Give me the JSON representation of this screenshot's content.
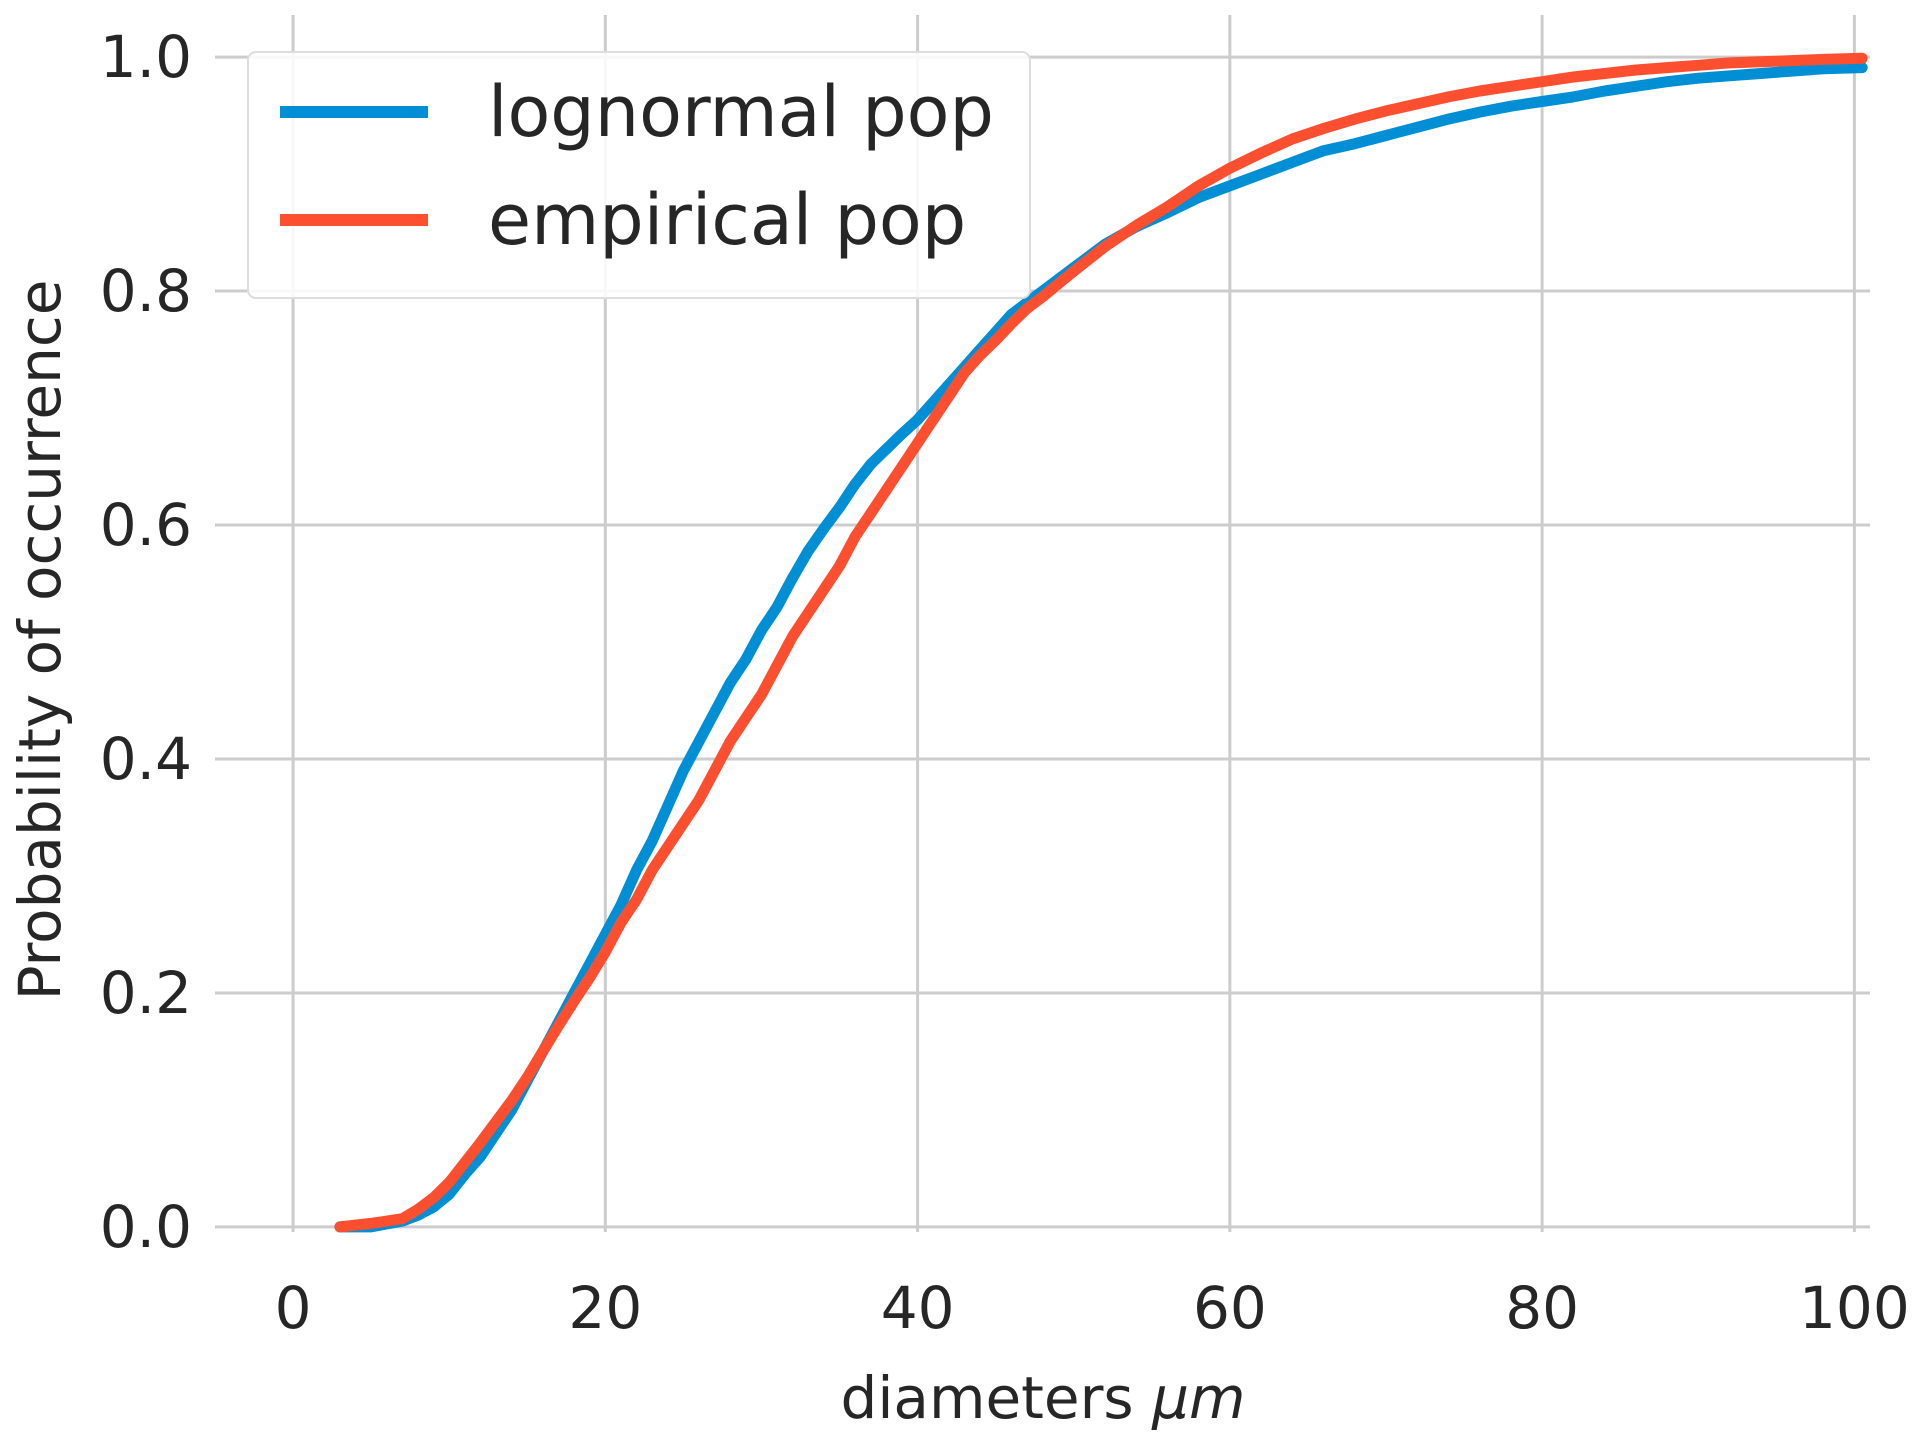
{
  "chart_data": {
    "type": "line",
    "xlabel": "diameters μm",
    "xlabel_parts": {
      "text": "diameters ",
      "unit": "μm"
    },
    "ylabel": "Probability of occurrence",
    "xlim": [
      -5,
      101
    ],
    "ylim": [
      -0.03,
      1.03
    ],
    "x_ticks": [
      0,
      20,
      40,
      60,
      80,
      100
    ],
    "x_tick_labels": [
      "0",
      "20",
      "40",
      "60",
      "80",
      "100"
    ],
    "y_ticks": [
      0.0,
      0.2,
      0.4,
      0.6,
      0.8,
      1.0
    ],
    "y_tick_labels": [
      "0.0",
      "0.2",
      "0.4",
      "0.6",
      "0.8",
      "1.0"
    ],
    "grid": true,
    "legend_position": "top-left",
    "series": [
      {
        "name": "lognormal pop",
        "color": "#008fd5",
        "x": [
          3,
          5,
          7,
          8,
          9,
          10,
          11,
          12,
          13,
          14,
          15,
          16,
          17,
          18,
          19,
          20,
          21,
          22,
          23,
          24,
          25,
          26,
          27,
          28,
          29,
          30,
          31,
          32,
          33,
          34,
          35,
          36,
          37,
          38,
          39,
          40,
          41,
          42,
          43,
          44,
          45,
          46,
          47,
          48,
          49,
          50,
          52,
          54,
          56,
          58,
          60,
          62,
          64,
          66,
          68,
          70,
          72,
          74,
          76,
          78,
          80,
          82,
          84,
          86,
          88,
          90,
          92,
          94,
          96,
          98,
          100.5
        ],
        "y": [
          0.0,
          0.0,
          0.005,
          0.01,
          0.017,
          0.028,
          0.045,
          0.06,
          0.08,
          0.1,
          0.125,
          0.15,
          0.175,
          0.2,
          0.225,
          0.25,
          0.275,
          0.305,
          0.33,
          0.36,
          0.39,
          0.415,
          0.44,
          0.465,
          0.485,
          0.51,
          0.53,
          0.555,
          0.578,
          0.597,
          0.615,
          0.635,
          0.652,
          0.665,
          0.678,
          0.69,
          0.705,
          0.72,
          0.735,
          0.75,
          0.765,
          0.78,
          0.79,
          0.8,
          0.81,
          0.82,
          0.84,
          0.855,
          0.867,
          0.88,
          0.89,
          0.9,
          0.91,
          0.92,
          0.926,
          0.933,
          0.94,
          0.947,
          0.953,
          0.958,
          0.962,
          0.966,
          0.971,
          0.975,
          0.979,
          0.982,
          0.984,
          0.986,
          0.988,
          0.99,
          0.991
        ]
      },
      {
        "name": "empirical pop",
        "color": "#fc4f30",
        "x": [
          3,
          5,
          7,
          8,
          9,
          10,
          11,
          12,
          13,
          14,
          15,
          16,
          17,
          18,
          19,
          20,
          21,
          22,
          23,
          24,
          25,
          26,
          27,
          28,
          29,
          30,
          31,
          32,
          33,
          34,
          35,
          36,
          37,
          38,
          39,
          40,
          41,
          42,
          43,
          44,
          45,
          46,
          47,
          48,
          49,
          50,
          52,
          54,
          56,
          58,
          60,
          62,
          64,
          66,
          68,
          70,
          72,
          74,
          76,
          78,
          80,
          82,
          84,
          86,
          88,
          90,
          92,
          94,
          96,
          98,
          100.5
        ],
        "y": [
          0.0,
          0.003,
          0.007,
          0.015,
          0.025,
          0.038,
          0.055,
          0.072,
          0.09,
          0.108,
          0.128,
          0.15,
          0.172,
          0.193,
          0.213,
          0.235,
          0.26,
          0.28,
          0.305,
          0.325,
          0.345,
          0.365,
          0.39,
          0.415,
          0.435,
          0.455,
          0.48,
          0.505,
          0.525,
          0.545,
          0.565,
          0.59,
          0.61,
          0.63,
          0.65,
          0.67,
          0.69,
          0.71,
          0.73,
          0.745,
          0.758,
          0.772,
          0.785,
          0.795,
          0.806,
          0.817,
          0.838,
          0.856,
          0.872,
          0.89,
          0.905,
          0.918,
          0.93,
          0.939,
          0.947,
          0.954,
          0.96,
          0.966,
          0.971,
          0.975,
          0.979,
          0.983,
          0.986,
          0.989,
          0.991,
          0.993,
          0.995,
          0.996,
          0.997,
          0.998,
          0.999
        ]
      }
    ]
  }
}
